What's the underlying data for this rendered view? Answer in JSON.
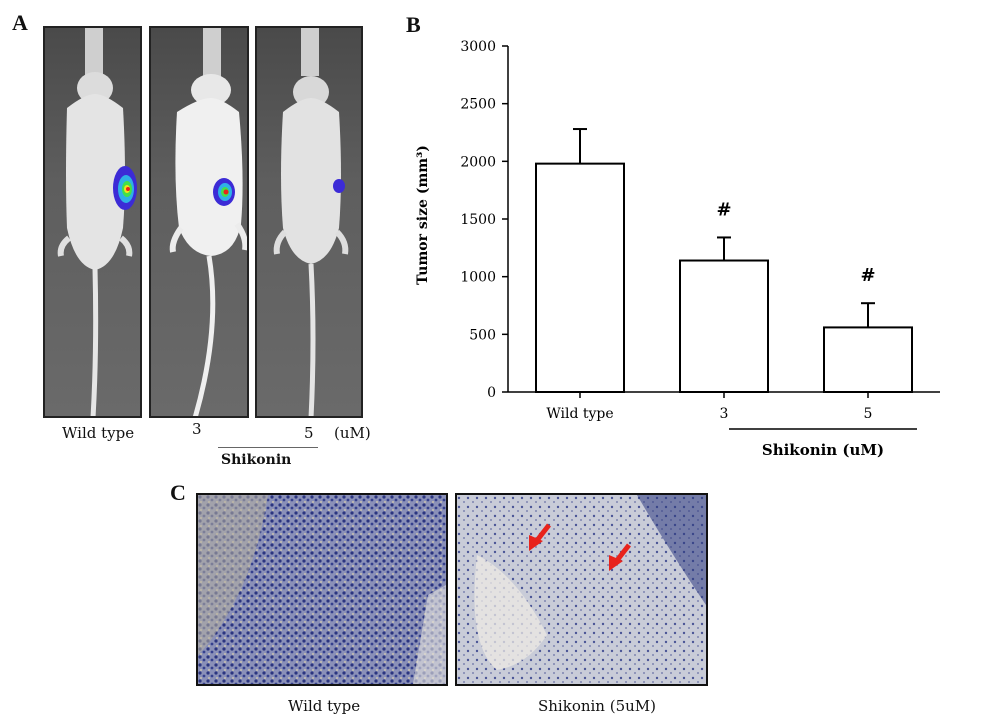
{
  "panels": {
    "a_letter": "A",
    "b_letter": "B",
    "c_letter": "C"
  },
  "panel_a": {
    "label_wild_type": "Wild type",
    "label_3": "3",
    "label_5": "5",
    "label_unit": "(uM)",
    "label_group": "Shikonin"
  },
  "chart_data": {
    "type": "bar",
    "categories": [
      "Wild type",
      "3",
      "5"
    ],
    "values": [
      1980,
      1140,
      560
    ],
    "error_upper": [
      300,
      200,
      210
    ],
    "significance": [
      "",
      "#",
      "#"
    ],
    "ylabel": "Tumor size (mm³)",
    "xlabel": "",
    "group_label": "Shikonin (uM)",
    "ylim": [
      0,
      3000
    ],
    "yticks": [
      0,
      500,
      1000,
      1500,
      2000,
      2500,
      3000
    ],
    "grid": false,
    "colors": {
      "bar_fill": "#ffffff",
      "bar_stroke": "#000000"
    }
  },
  "panel_c": {
    "label_left": "Wild type",
    "label_right": "Shikonin (5uM)",
    "arrow_color": "#e8231c"
  }
}
